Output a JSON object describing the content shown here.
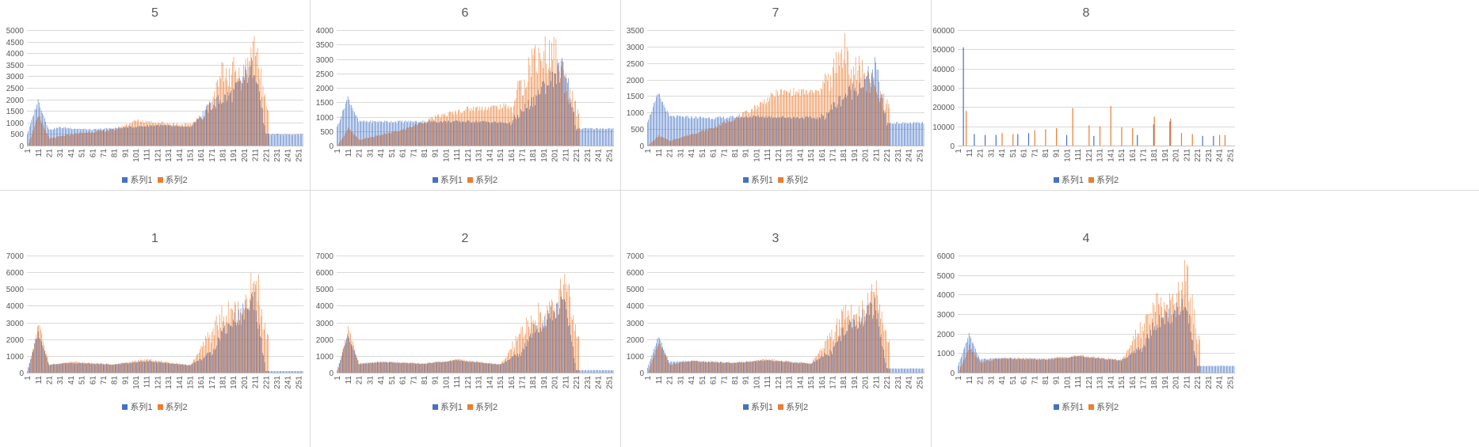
{
  "colors": {
    "series1": "#4472C4",
    "series2": "#ED7D31",
    "grid": "#D9D9D9",
    "text": "#595959"
  },
  "chart_data": [
    {
      "title": "5",
      "type": "bar",
      "profile": "A",
      "ylim": [
        0,
        5000
      ],
      "yticks": [
        0,
        500,
        1000,
        1500,
        2000,
        2500,
        3000,
        3500,
        4000,
        4500,
        5000
      ],
      "series": [
        {
          "name": "系列1",
          "values": [
            {
              "x": 1,
              "y": 500
            },
            {
              "x": 11,
              "y": 2000
            },
            {
              "x": 21,
              "y": 700
            },
            {
              "x": 31,
              "y": 800
            },
            {
              "x": 61,
              "y": 700
            },
            {
              "x": 91,
              "y": 800
            },
            {
              "x": 121,
              "y": 900
            },
            {
              "x": 151,
              "y": 800
            },
            {
              "x": 171,
              "y": 1800
            },
            {
              "x": 191,
              "y": 2300
            },
            {
              "x": 201,
              "y": 3000
            },
            {
              "x": 211,
              "y": 3600
            },
            {
              "x": 221,
              "y": 500
            },
            {
              "x": 251,
              "y": 500
            }
          ]
        },
        {
          "name": "系列2",
          "values": [
            {
              "x": 1,
              "y": 0
            },
            {
              "x": 11,
              "y": 1300
            },
            {
              "x": 21,
              "y": 300
            },
            {
              "x": 41,
              "y": 500
            },
            {
              "x": 81,
              "y": 700
            },
            {
              "x": 101,
              "y": 1100
            },
            {
              "x": 151,
              "y": 900
            },
            {
              "x": 171,
              "y": 1800
            },
            {
              "x": 181,
              "y": 3300
            },
            {
              "x": 201,
              "y": 3200
            },
            {
              "x": 211,
              "y": 4500
            },
            {
              "x": 221,
              "y": 1600
            }
          ]
        }
      ]
    },
    {
      "title": "6",
      "type": "bar",
      "profile": "B",
      "ylim": [
        0,
        4000
      ],
      "yticks": [
        0,
        500,
        1000,
        1500,
        2000,
        2500,
        3000,
        3500,
        4000
      ],
      "series": [
        {
          "name": "系列1",
          "values": [
            {
              "x": 1,
              "y": 650
            },
            {
              "x": 11,
              "y": 1700
            },
            {
              "x": 21,
              "y": 850
            },
            {
              "x": 41,
              "y": 850
            },
            {
              "x": 91,
              "y": 850
            },
            {
              "x": 131,
              "y": 850
            },
            {
              "x": 161,
              "y": 800
            },
            {
              "x": 181,
              "y": 1600
            },
            {
              "x": 201,
              "y": 2500
            },
            {
              "x": 211,
              "y": 2800
            },
            {
              "x": 221,
              "y": 600
            },
            {
              "x": 251,
              "y": 600
            }
          ]
        },
        {
          "name": "系列2",
          "values": [
            {
              "x": 1,
              "y": 0
            },
            {
              "x": 11,
              "y": 600
            },
            {
              "x": 21,
              "y": 200
            },
            {
              "x": 61,
              "y": 550
            },
            {
              "x": 91,
              "y": 1000
            },
            {
              "x": 121,
              "y": 1300
            },
            {
              "x": 161,
              "y": 1400
            },
            {
              "x": 171,
              "y": 2200
            },
            {
              "x": 181,
              "y": 3200
            },
            {
              "x": 201,
              "y": 3300
            },
            {
              "x": 221,
              "y": 1200
            }
          ]
        }
      ]
    },
    {
      "title": "7",
      "type": "bar",
      "profile": "B",
      "ylim": [
        0,
        3500
      ],
      "yticks": [
        0,
        500,
        1000,
        1500,
        2000,
        2500,
        3000,
        3500
      ],
      "series": [
        {
          "name": "系列1",
          "values": [
            {
              "x": 1,
              "y": 750
            },
            {
              "x": 11,
              "y": 1600
            },
            {
              "x": 21,
              "y": 900
            },
            {
              "x": 61,
              "y": 850
            },
            {
              "x": 101,
              "y": 900
            },
            {
              "x": 161,
              "y": 850
            },
            {
              "x": 181,
              "y": 1500
            },
            {
              "x": 201,
              "y": 2000
            },
            {
              "x": 211,
              "y": 2400
            },
            {
              "x": 221,
              "y": 700
            },
            {
              "x": 251,
              "y": 700
            }
          ]
        },
        {
          "name": "系列2",
          "values": [
            {
              "x": 1,
              "y": 0
            },
            {
              "x": 11,
              "y": 300
            },
            {
              "x": 21,
              "y": 150
            },
            {
              "x": 61,
              "y": 550
            },
            {
              "x": 91,
              "y": 1000
            },
            {
              "x": 121,
              "y": 1650
            },
            {
              "x": 161,
              "y": 1650
            },
            {
              "x": 181,
              "y": 2900
            },
            {
              "x": 201,
              "y": 2100
            },
            {
              "x": 221,
              "y": 1200
            }
          ]
        }
      ]
    },
    {
      "title": "8",
      "type": "bar",
      "profile": "S",
      "ylim": [
        0,
        60000
      ],
      "yticks": [
        0,
        10000,
        20000,
        30000,
        40000,
        50000,
        60000
      ],
      "series": [
        {
          "name": "系列1",
          "values": [
            {
              "x": 6,
              "y": 51000
            },
            {
              "x": 16,
              "y": 6000
            },
            {
              "x": 26,
              "y": 5500
            },
            {
              "x": 36,
              "y": 5500
            },
            {
              "x": 56,
              "y": 6000
            },
            {
              "x": 66,
              "y": 6500
            },
            {
              "x": 101,
              "y": 5500
            },
            {
              "x": 126,
              "y": 5000
            },
            {
              "x": 166,
              "y": 5500
            },
            {
              "x": 181,
              "y": 11000
            },
            {
              "x": 196,
              "y": 12500
            },
            {
              "x": 226,
              "y": 5000
            },
            {
              "x": 236,
              "y": 5000
            }
          ]
        },
        {
          "name": "系列2",
          "values": [
            {
              "x": 8,
              "y": 18000
            },
            {
              "x": 41,
              "y": 6500
            },
            {
              "x": 51,
              "y": 6000
            },
            {
              "x": 71,
              "y": 8000
            },
            {
              "x": 81,
              "y": 8500
            },
            {
              "x": 91,
              "y": 9000
            },
            {
              "x": 106,
              "y": 19500
            },
            {
              "x": 121,
              "y": 10500
            },
            {
              "x": 131,
              "y": 10000
            },
            {
              "x": 141,
              "y": 20500
            },
            {
              "x": 151,
              "y": 9500
            },
            {
              "x": 161,
              "y": 9000
            },
            {
              "x": 181,
              "y": 15000
            },
            {
              "x": 196,
              "y": 14000
            },
            {
              "x": 206,
              "y": 6500
            },
            {
              "x": 216,
              "y": 6000
            },
            {
              "x": 241,
              "y": 5500
            },
            {
              "x": 246,
              "y": 5500
            }
          ]
        }
      ]
    },
    {
      "title": "1",
      "type": "bar",
      "profile": "A",
      "ylim": [
        0,
        7000
      ],
      "yticks": [
        0,
        1000,
        2000,
        3000,
        4000,
        5000,
        6000,
        7000
      ],
      "series": [
        {
          "name": "系列1",
          "values": [
            {
              "x": 1,
              "y": 100
            },
            {
              "x": 11,
              "y": 2400
            },
            {
              "x": 21,
              "y": 500
            },
            {
              "x": 41,
              "y": 600
            },
            {
              "x": 81,
              "y": 500
            },
            {
              "x": 111,
              "y": 700
            },
            {
              "x": 151,
              "y": 450
            },
            {
              "x": 171,
              "y": 1200
            },
            {
              "x": 181,
              "y": 2500
            },
            {
              "x": 211,
              "y": 4500
            },
            {
              "x": 221,
              "y": 100
            },
            {
              "x": 251,
              "y": 100
            }
          ]
        },
        {
          "name": "系列2",
          "values": [
            {
              "x": 1,
              "y": 0
            },
            {
              "x": 11,
              "y": 3000
            },
            {
              "x": 21,
              "y": 450
            },
            {
              "x": 41,
              "y": 650
            },
            {
              "x": 81,
              "y": 500
            },
            {
              "x": 111,
              "y": 800
            },
            {
              "x": 151,
              "y": 450
            },
            {
              "x": 181,
              "y": 3500
            },
            {
              "x": 201,
              "y": 3800
            },
            {
              "x": 211,
              "y": 6200
            },
            {
              "x": 221,
              "y": 2200
            }
          ]
        }
      ]
    },
    {
      "title": "2",
      "type": "bar",
      "profile": "A",
      "ylim": [
        0,
        7000
      ],
      "yticks": [
        0,
        1000,
        2000,
        3000,
        4000,
        5000,
        6000,
        7000
      ],
      "series": [
        {
          "name": "系列1",
          "values": [
            {
              "x": 1,
              "y": 150
            },
            {
              "x": 11,
              "y": 2300
            },
            {
              "x": 21,
              "y": 550
            },
            {
              "x": 41,
              "y": 650
            },
            {
              "x": 81,
              "y": 550
            },
            {
              "x": 111,
              "y": 750
            },
            {
              "x": 151,
              "y": 500
            },
            {
              "x": 171,
              "y": 1200
            },
            {
              "x": 181,
              "y": 2500
            },
            {
              "x": 211,
              "y": 4300
            },
            {
              "x": 221,
              "y": 150
            },
            {
              "x": 251,
              "y": 150
            }
          ]
        },
        {
          "name": "系列2",
          "values": [
            {
              "x": 1,
              "y": 0
            },
            {
              "x": 11,
              "y": 2700
            },
            {
              "x": 21,
              "y": 500
            },
            {
              "x": 41,
              "y": 650
            },
            {
              "x": 81,
              "y": 550
            },
            {
              "x": 111,
              "y": 800
            },
            {
              "x": 151,
              "y": 500
            },
            {
              "x": 181,
              "y": 3400
            },
            {
              "x": 201,
              "y": 3800
            },
            {
              "x": 211,
              "y": 6100
            },
            {
              "x": 221,
              "y": 2100
            }
          ]
        }
      ]
    },
    {
      "title": "3",
      "type": "bar",
      "profile": "A",
      "ylim": [
        0,
        7000
      ],
      "yticks": [
        0,
        1000,
        2000,
        3000,
        4000,
        5000,
        6000,
        7000
      ],
      "series": [
        {
          "name": "系列1",
          "values": [
            {
              "x": 1,
              "y": 300
            },
            {
              "x": 11,
              "y": 2200
            },
            {
              "x": 21,
              "y": 650
            },
            {
              "x": 41,
              "y": 700
            },
            {
              "x": 81,
              "y": 600
            },
            {
              "x": 111,
              "y": 750
            },
            {
              "x": 151,
              "y": 550
            },
            {
              "x": 171,
              "y": 1300
            },
            {
              "x": 181,
              "y": 2500
            },
            {
              "x": 211,
              "y": 4000
            },
            {
              "x": 221,
              "y": 250
            },
            {
              "x": 251,
              "y": 250
            }
          ]
        },
        {
          "name": "系列2",
          "values": [
            {
              "x": 1,
              "y": 0
            },
            {
              "x": 11,
              "y": 1800
            },
            {
              "x": 21,
              "y": 500
            },
            {
              "x": 41,
              "y": 700
            },
            {
              "x": 81,
              "y": 600
            },
            {
              "x": 111,
              "y": 800
            },
            {
              "x": 151,
              "y": 550
            },
            {
              "x": 181,
              "y": 3400
            },
            {
              "x": 201,
              "y": 3700
            },
            {
              "x": 211,
              "y": 5800
            },
            {
              "x": 221,
              "y": 1900
            }
          ]
        }
      ]
    },
    {
      "title": "4",
      "type": "bar",
      "profile": "A",
      "ylim": [
        0,
        6000
      ],
      "yticks": [
        0,
        1000,
        2000,
        3000,
        4000,
        5000,
        6000
      ],
      "series": [
        {
          "name": "系列1",
          "values": [
            {
              "x": 1,
              "y": 350
            },
            {
              "x": 11,
              "y": 2000
            },
            {
              "x": 21,
              "y": 700
            },
            {
              "x": 41,
              "y": 750
            },
            {
              "x": 81,
              "y": 700
            },
            {
              "x": 111,
              "y": 850
            },
            {
              "x": 151,
              "y": 650
            },
            {
              "x": 171,
              "y": 1300
            },
            {
              "x": 181,
              "y": 2400
            },
            {
              "x": 211,
              "y": 3600
            },
            {
              "x": 221,
              "y": 350
            },
            {
              "x": 251,
              "y": 350
            }
          ]
        },
        {
          "name": "系列2",
          "values": [
            {
              "x": 1,
              "y": 0
            },
            {
              "x": 11,
              "y": 1400
            },
            {
              "x": 21,
              "y": 550
            },
            {
              "x": 41,
              "y": 750
            },
            {
              "x": 81,
              "y": 700
            },
            {
              "x": 111,
              "y": 900
            },
            {
              "x": 151,
              "y": 650
            },
            {
              "x": 181,
              "y": 3400
            },
            {
              "x": 201,
              "y": 3700
            },
            {
              "x": 211,
              "y": 5200
            },
            {
              "x": 221,
              "y": 1800
            }
          ]
        }
      ]
    }
  ],
  "x_ticks": [
    1,
    11,
    21,
    31,
    41,
    51,
    61,
    71,
    81,
    91,
    101,
    111,
    121,
    131,
    141,
    151,
    161,
    171,
    181,
    191,
    201,
    211,
    221,
    231,
    241,
    251
  ],
  "x_count": 255
}
